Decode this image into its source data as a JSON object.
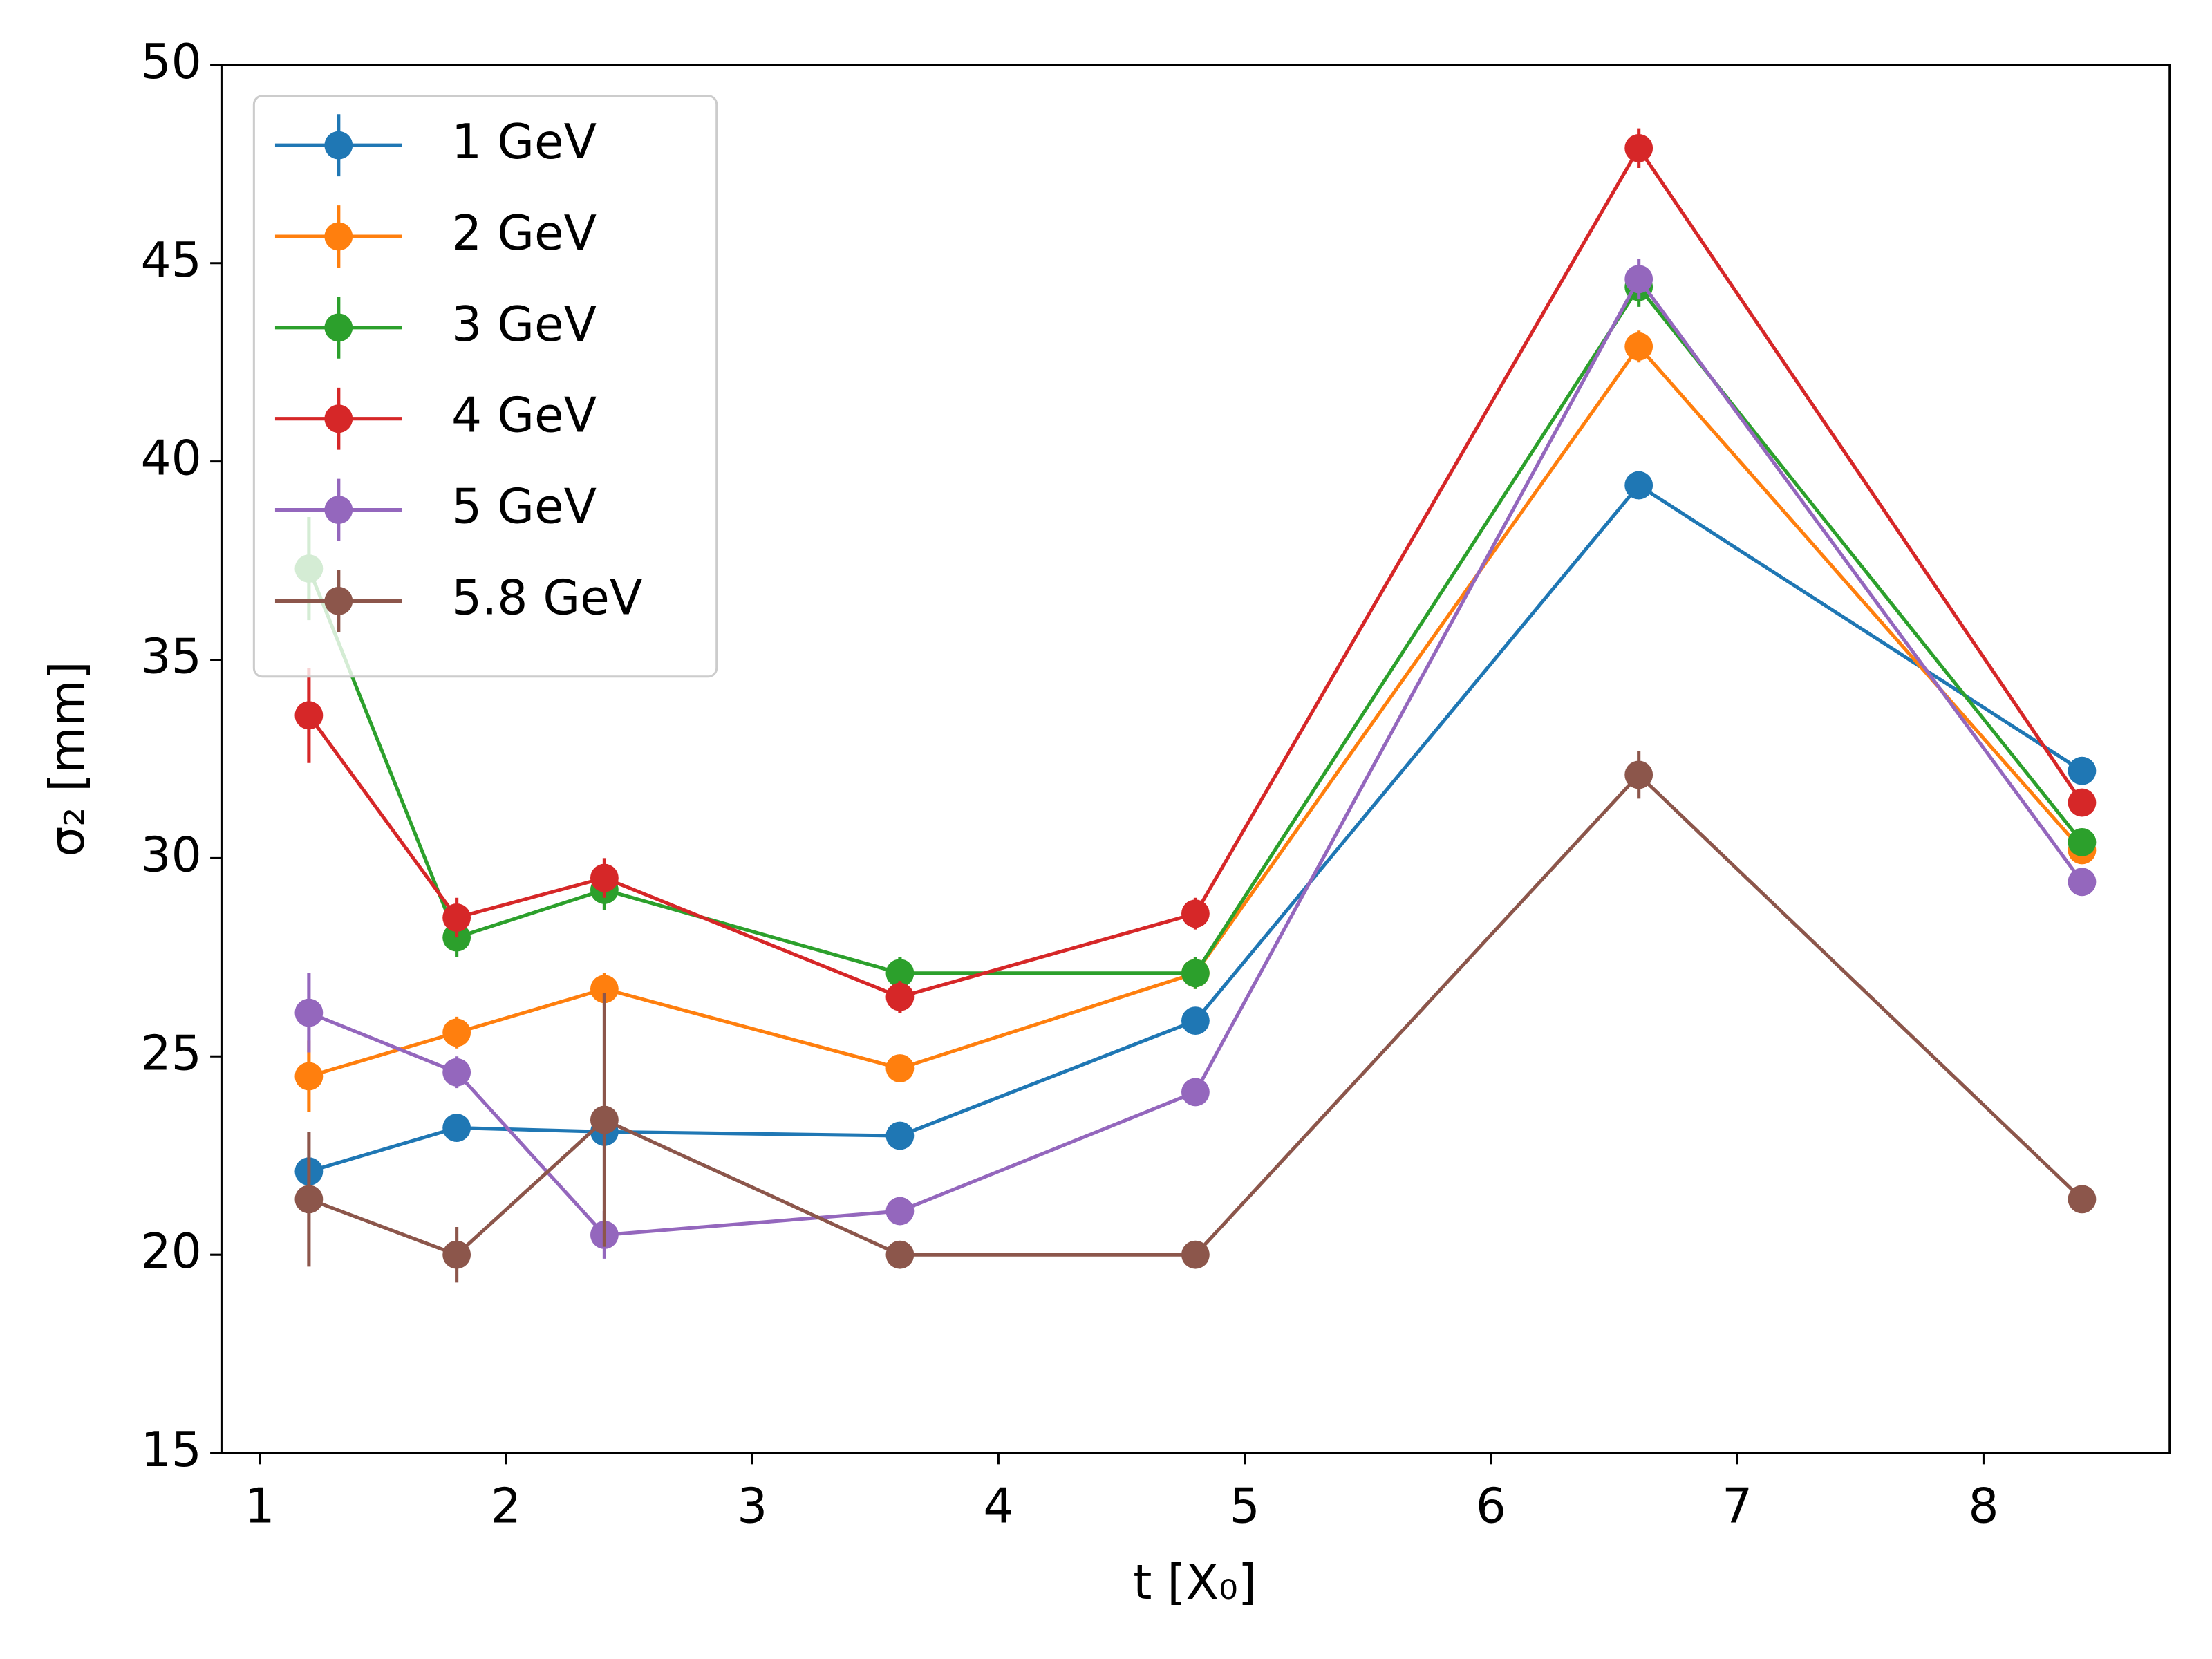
{
  "chart_data": {
    "type": "line",
    "x": [
      1.2,
      1.8,
      2.4,
      3.6,
      4.8,
      6.6,
      8.4
    ],
    "x_label": "t [X₀]",
    "y_label": "σ₂ [mm]",
    "xlim": [
      0.845,
      8.756
    ],
    "ylim": [
      15,
      50
    ],
    "xticks": [
      1,
      2,
      3,
      4,
      5,
      6,
      7,
      8
    ],
    "yticks": [
      15,
      20,
      25,
      30,
      35,
      40,
      45,
      50
    ],
    "legend": "upper left",
    "series": [
      {
        "name": "1 GeV",
        "color": "#1f77b4",
        "values": [
          22.1,
          23.2,
          23.1,
          23.0,
          25.9,
          39.4,
          32.2
        ],
        "errors": [
          0.3,
          0.3,
          0.3,
          0.3,
          0.3,
          0.3,
          0.3
        ]
      },
      {
        "name": "2 GeV",
        "color": "#ff7f0e",
        "values": [
          24.5,
          25.6,
          26.7,
          24.7,
          27.1,
          42.9,
          30.2
        ],
        "errors": [
          0.9,
          0.4,
          0.4,
          0.3,
          0.4,
          0.4,
          0.3
        ]
      },
      {
        "name": "3 GeV",
        "color": "#2ca02c",
        "values": [
          37.3,
          28.0,
          29.2,
          27.1,
          27.1,
          44.4,
          30.4
        ],
        "errors": [
          1.3,
          0.5,
          0.5,
          0.4,
          0.4,
          0.5,
          0.3
        ]
      },
      {
        "name": "4 GeV",
        "color": "#d62728",
        "values": [
          33.6,
          28.5,
          29.5,
          26.5,
          28.6,
          47.9,
          31.4
        ],
        "errors": [
          1.2,
          0.5,
          0.5,
          0.4,
          0.4,
          0.5,
          0.3
        ]
      },
      {
        "name": "5 GeV",
        "color": "#9467bd",
        "values": [
          26.1,
          24.6,
          20.5,
          21.1,
          24.1,
          44.6,
          29.4
        ],
        "errors": [
          1.0,
          0.4,
          0.6,
          0.3,
          0.3,
          0.5,
          0.3
        ]
      },
      {
        "name": "5.8 GeV",
        "color": "#8c564b",
        "values": [
          21.4,
          20.0,
          23.4,
          20.0,
          20.0,
          32.1,
          21.4
        ],
        "errors": [
          1.7,
          0.7,
          3.2,
          0.3,
          0.3,
          0.6,
          0.3
        ]
      }
    ]
  }
}
